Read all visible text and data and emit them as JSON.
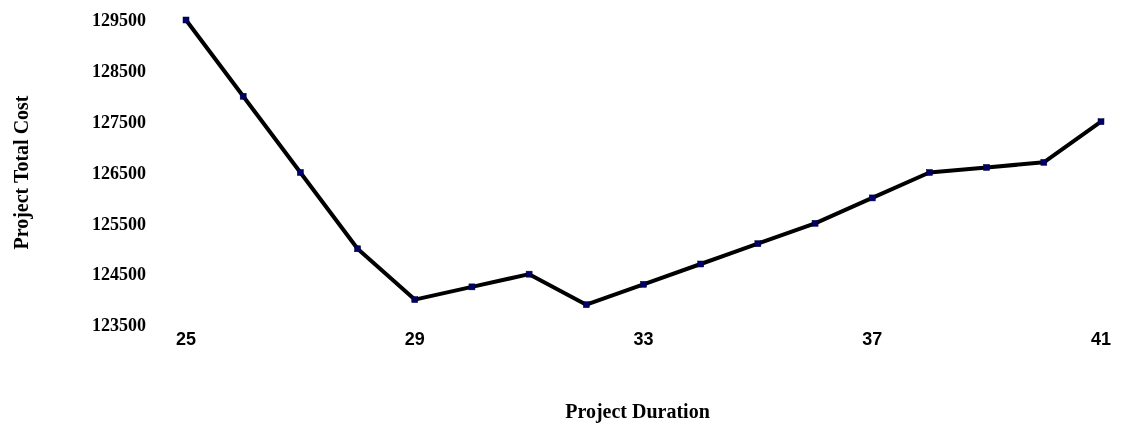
{
  "chart_data": {
    "type": "line",
    "xlabel": "Project Duration",
    "ylabel": "Project Total Cost",
    "x": [
      25,
      26,
      27,
      28,
      29,
      30,
      31,
      32,
      33,
      34,
      35,
      36,
      37,
      38,
      39,
      40,
      41
    ],
    "series": [
      {
        "color": "#000000",
        "values": [
          129500,
          128000,
          126500,
          125000,
          124000,
          124250,
          124500,
          123900,
          124300,
          124700,
          125100,
          125500,
          126000,
          126500,
          126600,
          126700,
          127500
        ]
      }
    ],
    "xlim": [
      25,
      41
    ],
    "xticks": [
      25,
      29,
      33,
      37,
      41
    ],
    "ylim": [
      123500,
      129500
    ],
    "yticks": [
      123500,
      124500,
      125500,
      126500,
      127500,
      128500,
      129500
    ],
    "marker": "square",
    "line_style": "solid"
  }
}
